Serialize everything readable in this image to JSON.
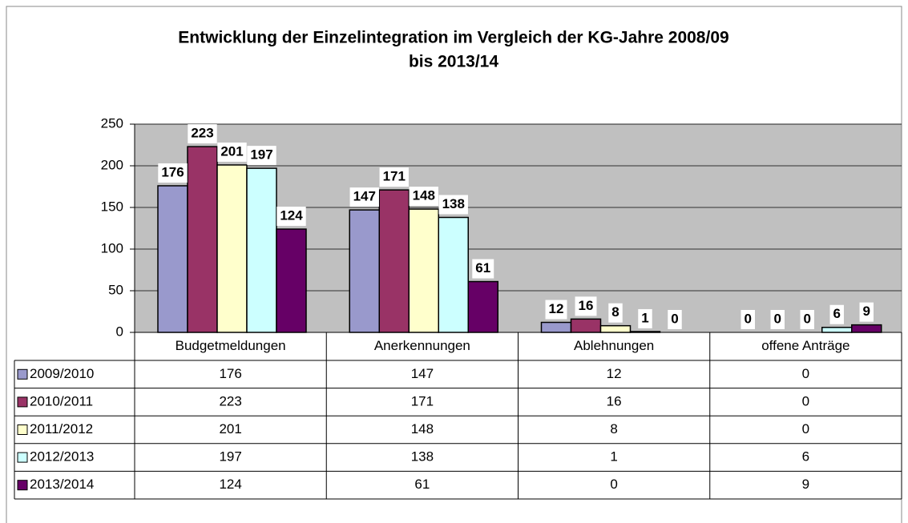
{
  "chart_data": {
    "type": "bar",
    "title": [
      "Entwicklung der Einzelintegration im Vergleich der KG-Jahre 2008/09",
      "bis 2013/14"
    ],
    "categories": [
      "Budgetmeldungen",
      "Anerkennungen",
      "Ablehnungen",
      "offene Anträge"
    ],
    "series": [
      {
        "name": "2009/2010",
        "color": "#9999cc",
        "values": [
          176,
          147,
          12,
          0
        ]
      },
      {
        "name": "2010/2011",
        "color": "#993366",
        "values": [
          223,
          171,
          16,
          0
        ]
      },
      {
        "name": "2011/2012",
        "color": "#ffffcc",
        "values": [
          201,
          148,
          8,
          0
        ]
      },
      {
        "name": "2012/2013",
        "color": "#ccffff",
        "values": [
          197,
          138,
          1,
          6
        ]
      },
      {
        "name": "2013/2014",
        "color": "#660066",
        "values": [
          124,
          61,
          0,
          9
        ]
      }
    ],
    "ylim": [
      0,
      250
    ],
    "yticks": [
      0,
      50,
      100,
      150,
      200,
      250
    ],
    "grid": true
  }
}
